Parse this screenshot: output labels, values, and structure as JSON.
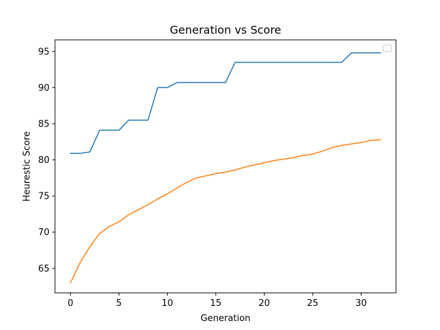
{
  "chart_data": {
    "type": "line",
    "title": "Generation vs Score",
    "xlabel": "Generation",
    "ylabel": "Heurestic Score",
    "xlim": [
      -1.6,
      33.6
    ],
    "ylim": [
      61.6,
      96.6
    ],
    "xticks": [
      0,
      5,
      10,
      15,
      20,
      25,
      30
    ],
    "yticks": [
      65,
      70,
      75,
      80,
      85,
      90,
      95
    ],
    "grid": false,
    "legend": "top-right, empty",
    "x": [
      0,
      1,
      2,
      3,
      4,
      5,
      6,
      7,
      8,
      9,
      10,
      11,
      12,
      13,
      14,
      15,
      16,
      17,
      18,
      19,
      20,
      21,
      22,
      23,
      24,
      25,
      26,
      27,
      28,
      29,
      30,
      31,
      32
    ],
    "series": [
      {
        "color": "#1f77b4",
        "values": [
          80.9,
          80.9,
          81.1,
          84.1,
          84.1,
          84.1,
          85.5,
          85.5,
          85.5,
          90.0,
          90.0,
          90.7,
          90.7,
          90.7,
          90.7,
          90.7,
          90.7,
          93.5,
          93.5,
          93.5,
          93.5,
          93.5,
          93.5,
          93.5,
          93.5,
          93.5,
          93.5,
          93.5,
          93.5,
          94.8,
          94.8,
          94.8,
          94.8
        ]
      },
      {
        "color": "#ff7f0e",
        "values": [
          63.0,
          65.8,
          68.0,
          69.8,
          70.8,
          71.4,
          72.4,
          73.1,
          73.8,
          74.6,
          75.3,
          76.1,
          76.9,
          77.5,
          77.8,
          78.1,
          78.3,
          78.6,
          79.0,
          79.3,
          79.6,
          79.9,
          80.1,
          80.3,
          80.6,
          80.8,
          81.2,
          81.7,
          82.0,
          82.2,
          82.4,
          82.7,
          82.8
        ]
      }
    ]
  }
}
